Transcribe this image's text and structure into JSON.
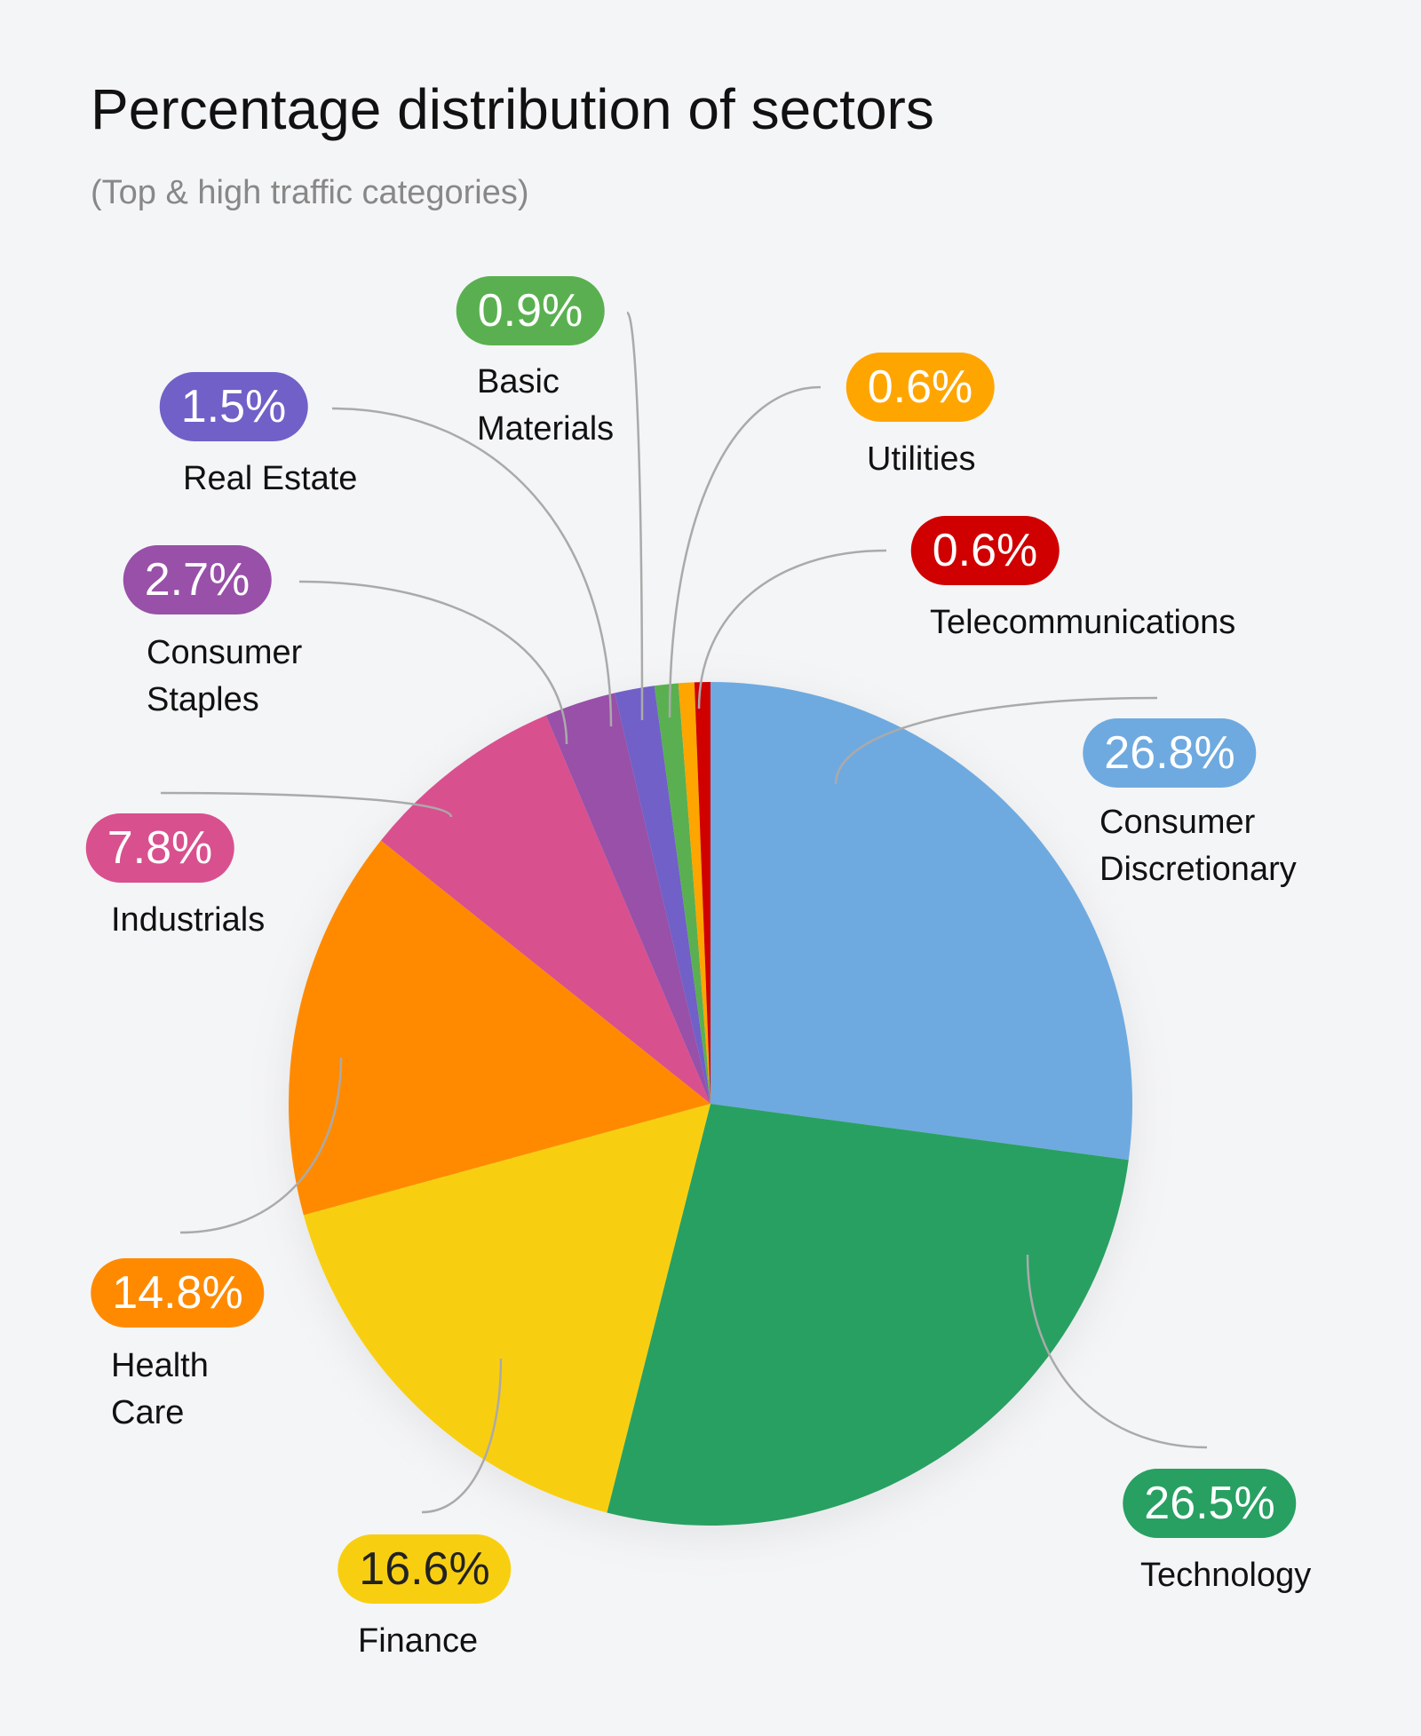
{
  "chart_data": {
    "type": "pie",
    "title": "Percentage distribution of sectors",
    "subtitle": "(Top & high traffic categories)",
    "categories": [
      "Consumer Discretionary",
      "Technology",
      "Finance",
      "Health Care",
      "Industrials",
      "Consumer Staples",
      "Real Estate",
      "Basic Materials",
      "Utilities",
      "Telecommunications"
    ],
    "values": [
      26.8,
      26.5,
      16.6,
      14.8,
      7.8,
      2.7,
      1.5,
      0.9,
      0.6,
      0.6
    ],
    "value_labels": [
      "26.8%",
      "26.5%",
      "16.6%",
      "14.8%",
      "7.8%",
      "2.7%",
      "1.5%",
      "0.9%",
      "0.6%",
      "0.6%"
    ],
    "colors": [
      "#6eaae0",
      "#28a062",
      "#f8cf10",
      "#ff8a00",
      "#d9508e",
      "#9850a8",
      "#7060c8",
      "#5ab050",
      "#ffa500",
      "#d00000"
    ]
  }
}
